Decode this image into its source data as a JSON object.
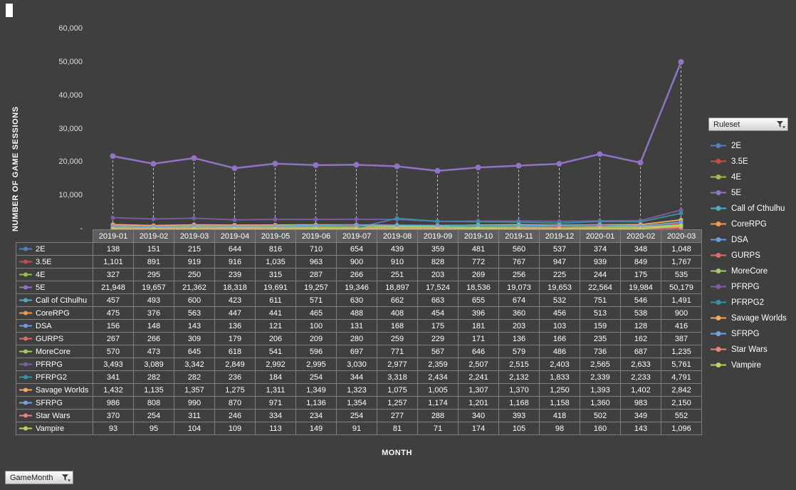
{
  "colors": {
    "background": "#3F3F3F",
    "table_border": "#7E7E7E",
    "header_cell_background": "#5E5E5E",
    "text": "#FFFFFF",
    "tick_text": "#DEDEDE",
    "drop_line": "#C9C9C9"
  },
  "icons": {
    "filter": "funnel-with-dropdown-arrow",
    "legend_marker": "line-with-dot"
  },
  "filters": {
    "ruleset": {
      "label": "Ruleset"
    },
    "gamemonth": {
      "label": "GameMonth"
    }
  },
  "axes": {
    "y_title": "NUMBER OF GAME SESSIONS",
    "x_title": "MONTH",
    "y_ticks": [
      "60,000",
      "50,000",
      "40,000",
      "30,000",
      "20,000",
      "10,000",
      "-"
    ]
  },
  "chart_data": {
    "type": "line",
    "title": "",
    "xlabel": "MONTH",
    "ylabel": "NUMBER OF GAME SESSIONS",
    "ylim": [
      0,
      60000
    ],
    "y_tick_step": 10000,
    "grid": "vertical-dashed-drop-lines",
    "legend_position": "right",
    "legend_title": "Ruleset",
    "marker": "circle",
    "x": [
      "2019-01",
      "2019-02",
      "2019-03",
      "2019-04",
      "2019-05",
      "2019-06",
      "2019-07",
      "2019-08",
      "2019-09",
      "2019-10",
      "2019-11",
      "2019-12",
      "2020-01",
      "2020-02",
      "2020-03"
    ],
    "series": [
      {
        "name": "2E",
        "color": "#4F81BD",
        "values": [
          138,
          151,
          215,
          644,
          816,
          710,
          654,
          439,
          359,
          481,
          560,
          537,
          374,
          348,
          1048
        ]
      },
      {
        "name": "3.5E",
        "color": "#D0494A",
        "values": [
          1101,
          891,
          919,
          916,
          1035,
          963,
          900,
          910,
          828,
          772,
          767,
          947,
          939,
          849,
          1767
        ]
      },
      {
        "name": "4E",
        "color": "#9BBB59",
        "values": [
          327,
          295,
          250,
          239,
          315,
          287,
          266,
          251,
          203,
          269,
          256,
          225,
          244,
          175,
          535
        ]
      },
      {
        "name": "5E",
        "color": "#9272C4",
        "values": [
          21948,
          19657,
          21362,
          18318,
          19691,
          19257,
          19346,
          18897,
          17524,
          18536,
          19073,
          19653,
          22564,
          19984,
          50179
        ]
      },
      {
        "name": "Call of Cthulhu",
        "color": "#4BACC6",
        "values": [
          457,
          493,
          600,
          423,
          611,
          571,
          630,
          662,
          663,
          655,
          674,
          532,
          751,
          546,
          1491
        ]
      },
      {
        "name": "CoreRPG",
        "color": "#F79646",
        "values": [
          475,
          376,
          563,
          447,
          441,
          465,
          488,
          408,
          454,
          396,
          360,
          456,
          513,
          538,
          900
        ]
      },
      {
        "name": "DSA",
        "color": "#6B9BD2",
        "values": [
          156,
          148,
          143,
          136,
          121,
          100,
          131,
          168,
          175,
          181,
          203,
          103,
          159,
          128,
          416
        ]
      },
      {
        "name": "GURPS",
        "color": "#E06A66",
        "values": [
          267,
          266,
          309,
          179,
          206,
          209,
          280,
          259,
          229,
          171,
          136,
          166,
          235,
          162,
          387
        ]
      },
      {
        "name": "MoreCore",
        "color": "#A9C86A",
        "values": [
          570,
          473,
          645,
          618,
          541,
          596,
          697,
          771,
          567,
          646,
          579,
          486,
          736,
          687,
          1235
        ]
      },
      {
        "name": "PFRPG",
        "color": "#7A5EA8",
        "values": [
          3493,
          3089,
          3342,
          2849,
          2992,
          2995,
          3030,
          2977,
          2359,
          2507,
          2515,
          2403,
          2565,
          2633,
          5761
        ]
      },
      {
        "name": "PFRPG2",
        "color": "#3C8FA0",
        "values": [
          341,
          282,
          282,
          236,
          184,
          254,
          344,
          3318,
          2434,
          2241,
          2132,
          1833,
          2339,
          2233,
          4791
        ]
      },
      {
        "name": "Savage Worlds",
        "color": "#F9A65A",
        "values": [
          1432,
          1135,
          1357,
          1275,
          1311,
          1349,
          1323,
          1075,
          1005,
          1307,
          1370,
          1250,
          1393,
          1402,
          2842
        ]
      },
      {
        "name": "SFRPG",
        "color": "#6FA3DC",
        "values": [
          986,
          808,
          990,
          870,
          971,
          1136,
          1354,
          1257,
          1174,
          1201,
          1168,
          1158,
          1360,
          983,
          2150
        ]
      },
      {
        "name": "Star Wars",
        "color": "#E8837E",
        "values": [
          370,
          254,
          311,
          246,
          334,
          234,
          254,
          277,
          288,
          340,
          393,
          418,
          502,
          349,
          552
        ]
      },
      {
        "name": "Vampire",
        "color": "#BCD163",
        "values": [
          93,
          95,
          104,
          109,
          113,
          149,
          91,
          81,
          71,
          174,
          105,
          98,
          160,
          143,
          1096
        ]
      }
    ]
  }
}
